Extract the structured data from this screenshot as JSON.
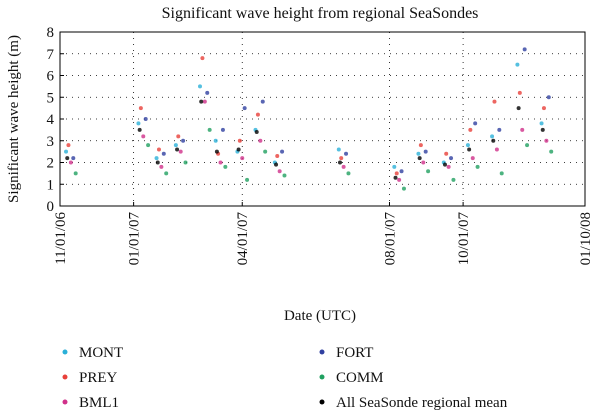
{
  "chart_data": {
    "type": "scatter",
    "title": "Significant wave height from regional SeaSondes",
    "x_label": "Date (UTC)",
    "y_label": "Significant wave height (m)",
    "xlim": [
      "2006-11-01",
      "2008-01-10"
    ],
    "xticks": [
      {
        "value": "2006-11-01",
        "label": "11/01/06"
      },
      {
        "value": "2007-01-01",
        "label": "01/01/07"
      },
      {
        "value": "2007-04-01",
        "label": "04/01/07"
      },
      {
        "value": "2007-08-01",
        "label": "08/01/07"
      },
      {
        "value": "2007-10-01",
        "label": "10/01/07"
      },
      {
        "value": "2008-01-10",
        "label": "01/10/08"
      }
    ],
    "ylim": [
      0,
      8
    ],
    "yticks": [
      0,
      1,
      2,
      3,
      4,
      5,
      6,
      7,
      8
    ],
    "grid": true,
    "series": [
      {
        "name": "MONT",
        "color": "#2ab0d8",
        "x": [
          "2006-11-06",
          "2007-01-05",
          "2007-01-20",
          "2007-02-05",
          "2007-02-25",
          "2007-03-10",
          "2007-03-28",
          "2007-04-12",
          "2007-04-28",
          "2007-06-20",
          "2007-08-05",
          "2007-08-25",
          "2007-09-15",
          "2007-10-05",
          "2007-10-25",
          "2007-11-15",
          "2007-12-05"
        ],
        "values": [
          2.5,
          3.8,
          2.2,
          2.8,
          5.5,
          3.0,
          2.5,
          3.5,
          2.0,
          2.6,
          1.8,
          2.4,
          2.0,
          2.8,
          3.2,
          6.5,
          3.8
        ]
      },
      {
        "name": "PREY",
        "color": "#e8403a",
        "x": [
          "2006-11-08",
          "2007-01-07",
          "2007-01-22",
          "2007-02-07",
          "2007-02-27",
          "2007-03-12",
          "2007-03-30",
          "2007-04-14",
          "2007-04-30",
          "2007-06-22",
          "2007-08-07",
          "2007-08-27",
          "2007-09-17",
          "2007-10-07",
          "2007-10-27",
          "2007-11-17",
          "2007-12-07"
        ],
        "values": [
          2.8,
          4.5,
          2.6,
          3.2,
          6.8,
          2.4,
          3.0,
          4.2,
          2.3,
          2.2,
          1.5,
          2.8,
          2.4,
          3.5,
          4.8,
          5.2,
          4.5
        ]
      },
      {
        "name": "BML1",
        "color": "#d0308a",
        "x": [
          "2006-11-10",
          "2007-01-09",
          "2007-01-24",
          "2007-02-09",
          "2007-03-01",
          "2007-03-14",
          "2007-04-01",
          "2007-04-16",
          "2007-05-02",
          "2007-06-24",
          "2007-08-09",
          "2007-08-29",
          "2007-09-19",
          "2007-10-09",
          "2007-10-29",
          "2007-11-19",
          "2007-12-09"
        ],
        "values": [
          2.0,
          3.2,
          1.8,
          2.5,
          4.8,
          2.0,
          2.2,
          3.0,
          1.6,
          1.8,
          1.2,
          2.0,
          1.8,
          2.2,
          2.6,
          3.5,
          3.0
        ]
      },
      {
        "name": "FORT",
        "color": "#3040a0",
        "x": [
          "2006-11-12",
          "2007-01-11",
          "2007-01-26",
          "2007-02-11",
          "2007-03-03",
          "2007-03-16",
          "2007-04-03",
          "2007-04-18",
          "2007-05-04",
          "2007-06-26",
          "2007-08-11",
          "2007-08-31",
          "2007-09-21",
          "2007-10-11",
          "2007-10-31",
          "2007-11-21",
          "2007-12-11"
        ],
        "values": [
          2.2,
          4.0,
          2.4,
          3.0,
          5.2,
          3.5,
          4.5,
          4.8,
          2.5,
          2.4,
          1.6,
          2.5,
          2.2,
          3.8,
          3.5,
          7.2,
          5.0
        ]
      },
      {
        "name": "COMM",
        "color": "#20a060",
        "x": [
          "2006-11-14",
          "2007-01-13",
          "2007-01-28",
          "2007-02-13",
          "2007-03-05",
          "2007-03-18",
          "2007-04-05",
          "2007-04-20",
          "2007-05-06",
          "2007-06-28",
          "2007-08-13",
          "2007-09-02",
          "2007-09-23",
          "2007-10-13",
          "2007-11-02",
          "2007-11-23",
          "2007-12-13"
        ],
        "values": [
          1.5,
          2.8,
          1.5,
          2.0,
          3.5,
          1.8,
          1.2,
          2.5,
          1.4,
          1.5,
          0.8,
          1.6,
          1.2,
          1.8,
          1.5,
          2.8,
          2.5
        ]
      },
      {
        "name": "All SeaSonde regional mean",
        "color": "#000000",
        "x": [
          "2006-11-07",
          "2007-01-06",
          "2007-01-21",
          "2007-02-06",
          "2007-02-26",
          "2007-03-11",
          "2007-03-29",
          "2007-04-13",
          "2007-04-29",
          "2007-06-21",
          "2007-08-06",
          "2007-08-26",
          "2007-09-16",
          "2007-10-06",
          "2007-10-26",
          "2007-11-16",
          "2007-12-06"
        ],
        "values": [
          2.2,
          3.5,
          2.0,
          2.6,
          4.8,
          2.5,
          2.6,
          3.4,
          1.9,
          2.0,
          1.3,
          2.2,
          1.9,
          2.6,
          3.0,
          4.5,
          3.5
        ]
      }
    ]
  }
}
